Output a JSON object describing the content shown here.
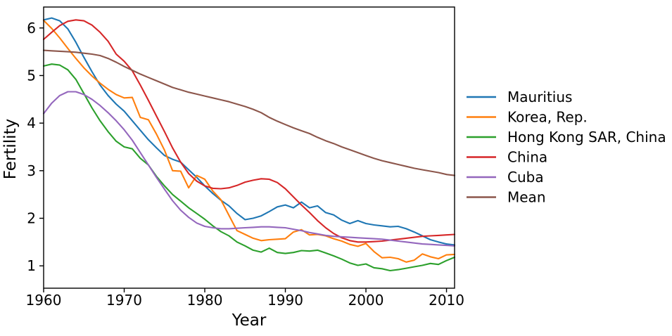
{
  "chart_data": {
    "type": "line",
    "title": "",
    "xlabel": "Year",
    "ylabel": "Fertility",
    "grid": false,
    "legend_position": "center-right outside axes, no frame",
    "axis_color": "#000000",
    "background_color": "#ffffff",
    "xlim": [
      1960,
      2011
    ],
    "ylim": [
      0.53,
      6.44
    ],
    "xticks": [
      1960,
      1970,
      1980,
      1990,
      2000,
      2010
    ],
    "yticks": [
      1,
      2,
      3,
      4,
      5,
      6
    ],
    "x": [
      1960,
      1961,
      1962,
      1963,
      1964,
      1965,
      1966,
      1967,
      1968,
      1969,
      1970,
      1971,
      1972,
      1973,
      1974,
      1975,
      1976,
      1977,
      1978,
      1979,
      1980,
      1981,
      1982,
      1983,
      1984,
      1985,
      1986,
      1987,
      1988,
      1989,
      1990,
      1991,
      1992,
      1993,
      1994,
      1995,
      1996,
      1997,
      1998,
      1999,
      2000,
      2001,
      2002,
      2003,
      2004,
      2005,
      2006,
      2007,
      2008,
      2009,
      2010,
      2011
    ],
    "series": [
      {
        "name": "Mauritius",
        "color": "#1f77b4",
        "values": [
          6.17,
          6.21,
          6.15,
          5.98,
          5.7,
          5.38,
          5.08,
          4.8,
          4.58,
          4.4,
          4.25,
          4.05,
          3.85,
          3.65,
          3.48,
          3.32,
          3.24,
          3.18,
          3.02,
          2.86,
          2.68,
          2.52,
          2.38,
          2.26,
          2.1,
          1.97,
          2.0,
          2.05,
          2.14,
          2.24,
          2.28,
          2.22,
          2.34,
          2.22,
          2.26,
          2.12,
          2.07,
          1.96,
          1.89,
          1.95,
          1.89,
          1.86,
          1.84,
          1.82,
          1.83,
          1.78,
          1.71,
          1.63,
          1.55,
          1.5,
          1.46,
          1.44
        ]
      },
      {
        "name": "Korea, Rep.",
        "color": "#ff7f0e",
        "values": [
          6.16,
          5.99,
          5.79,
          5.57,
          5.36,
          5.16,
          4.99,
          4.84,
          4.71,
          4.6,
          4.53,
          4.54,
          4.12,
          4.07,
          3.77,
          3.43,
          3.0,
          2.99,
          2.64,
          2.9,
          2.82,
          2.57,
          2.39,
          2.06,
          1.74,
          1.66,
          1.58,
          1.53,
          1.55,
          1.56,
          1.57,
          1.71,
          1.76,
          1.65,
          1.66,
          1.63,
          1.57,
          1.52,
          1.45,
          1.41,
          1.47,
          1.3,
          1.17,
          1.18,
          1.15,
          1.08,
          1.12,
          1.25,
          1.19,
          1.15,
          1.23,
          1.24
        ]
      },
      {
        "name": "Hong Kong SAR, China",
        "color": "#2ca02c",
        "values": [
          5.2,
          5.24,
          5.22,
          5.12,
          4.92,
          4.62,
          4.32,
          4.05,
          3.82,
          3.62,
          3.5,
          3.46,
          3.26,
          3.12,
          2.88,
          2.68,
          2.5,
          2.36,
          2.22,
          2.1,
          1.98,
          1.84,
          1.72,
          1.63,
          1.5,
          1.42,
          1.33,
          1.29,
          1.37,
          1.28,
          1.26,
          1.28,
          1.32,
          1.31,
          1.33,
          1.27,
          1.21,
          1.14,
          1.06,
          1.01,
          1.04,
          0.96,
          0.94,
          0.9,
          0.92,
          0.95,
          0.98,
          1.01,
          1.05,
          1.03,
          1.11,
          1.18
        ]
      },
      {
        "name": "China",
        "color": "#d62728",
        "values": [
          5.76,
          5.91,
          6.05,
          6.14,
          6.17,
          6.15,
          6.06,
          5.91,
          5.72,
          5.45,
          5.3,
          5.1,
          4.8,
          4.48,
          4.15,
          3.82,
          3.48,
          3.18,
          2.94,
          2.78,
          2.68,
          2.63,
          2.62,
          2.64,
          2.69,
          2.76,
          2.8,
          2.83,
          2.82,
          2.75,
          2.62,
          2.45,
          2.28,
          2.12,
          1.95,
          1.8,
          1.68,
          1.59,
          1.53,
          1.5,
          1.5,
          1.51,
          1.52,
          1.54,
          1.56,
          1.58,
          1.6,
          1.62,
          1.63,
          1.64,
          1.65,
          1.66
        ]
      },
      {
        "name": "Cuba",
        "color": "#9467bd",
        "values": [
          4.2,
          4.42,
          4.58,
          4.66,
          4.66,
          4.6,
          4.5,
          4.37,
          4.22,
          4.05,
          3.86,
          3.64,
          3.38,
          3.12,
          2.86,
          2.61,
          2.37,
          2.17,
          2.02,
          1.9,
          1.83,
          1.8,
          1.78,
          1.78,
          1.79,
          1.8,
          1.81,
          1.82,
          1.82,
          1.81,
          1.8,
          1.77,
          1.74,
          1.7,
          1.67,
          1.64,
          1.62,
          1.61,
          1.6,
          1.59,
          1.58,
          1.57,
          1.56,
          1.54,
          1.52,
          1.5,
          1.48,
          1.46,
          1.45,
          1.44,
          1.43,
          1.42
        ]
      },
      {
        "name": "Mean",
        "color": "#8c564b",
        "values": [
          5.53,
          5.52,
          5.51,
          5.5,
          5.49,
          5.47,
          5.45,
          5.42,
          5.36,
          5.28,
          5.19,
          5.11,
          5.03,
          4.96,
          4.89,
          4.82,
          4.75,
          4.7,
          4.65,
          4.61,
          4.57,
          4.53,
          4.49,
          4.45,
          4.4,
          4.35,
          4.29,
          4.22,
          4.12,
          4.04,
          3.97,
          3.9,
          3.84,
          3.78,
          3.7,
          3.63,
          3.57,
          3.5,
          3.44,
          3.38,
          3.32,
          3.26,
          3.21,
          3.17,
          3.13,
          3.09,
          3.05,
          3.02,
          2.99,
          2.96,
          2.92,
          2.9
        ]
      }
    ],
    "legend": [
      "Mauritius",
      "Korea, Rep.",
      "Hong Kong SAR, China",
      "China",
      "Cuba",
      "Mean"
    ]
  }
}
